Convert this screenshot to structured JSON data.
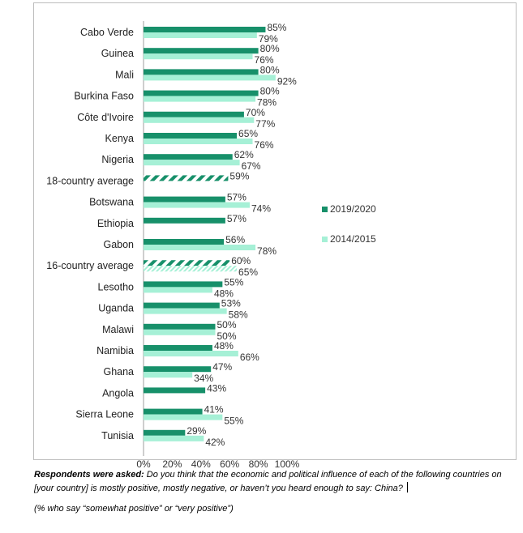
{
  "chart_data": {
    "type": "bar",
    "orientation": "horizontal",
    "categories": [
      "Cabo Verde",
      "Guinea",
      "Mali",
      "Burkina Faso",
      "Côte d'Ivoire",
      "Kenya",
      "Nigeria",
      "18-country average",
      "Botswana",
      "Ethiopia",
      "Gabon",
      "16-country average",
      "Lesotho",
      "Uganda",
      "Malawi",
      "Namibia",
      "Ghana",
      "Angola",
      "Sierra Leone",
      "Tunisia"
    ],
    "series": [
      {
        "name": "2019/2020",
        "color": "#17906a",
        "values": [
          85,
          80,
          80,
          80,
          70,
          65,
          62,
          59,
          57,
          57,
          56,
          60,
          55,
          53,
          50,
          48,
          47,
          43,
          41,
          29
        ]
      },
      {
        "name": "2014/2015",
        "color": "#a6f0d6",
        "values": [
          79,
          76,
          92,
          78,
          77,
          76,
          67,
          null,
          74,
          null,
          78,
          65,
          48,
          58,
          50,
          66,
          34,
          null,
          55,
          42
        ]
      }
    ],
    "patterned_categories": [
      "18-country average",
      "16-country average"
    ],
    "x_ticks": [
      "0%",
      "20%",
      "40%",
      "60%",
      "80%",
      "100%"
    ],
    "xlim": [
      0,
      100
    ],
    "legend_position": "right",
    "grid": false
  },
  "caption": {
    "lead": "Respondents were asked:",
    "question": "Do you think that the economic and political influence of each of the following countries on [your country] is mostly positive, mostly negative, or haven’t you heard enough to say: China?",
    "note": "(% who say “somewhat positive” or “very positive”)"
  }
}
